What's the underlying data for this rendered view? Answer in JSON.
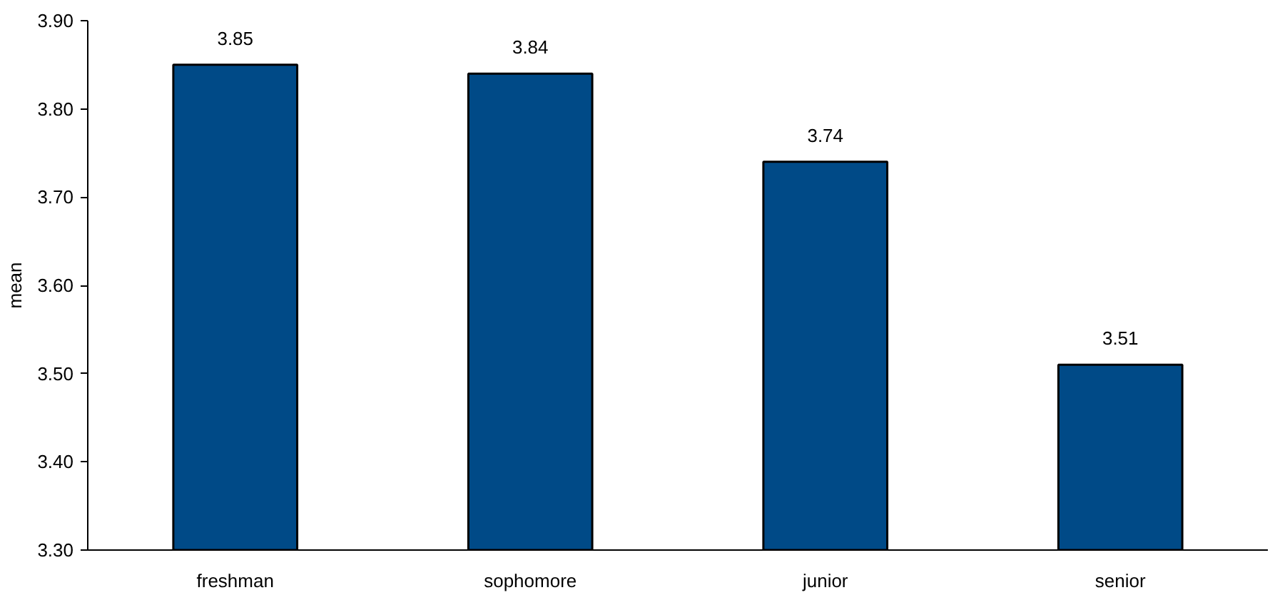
{
  "chart_data": {
    "type": "bar",
    "ylabel": "mean",
    "categories": [
      "freshman",
      "sophomore",
      "junior",
      "senior"
    ],
    "values": [
      3.85,
      3.84,
      3.74,
      3.51
    ],
    "color": "#004a87",
    "data_labels": true,
    "ylim": [
      3.3,
      3.9
    ],
    "yticks": [
      {
        "value": 3.3,
        "label": "3.30"
      },
      {
        "value": 3.4,
        "label": "3.40"
      },
      {
        "value": 3.5,
        "label": "3.50"
      },
      {
        "value": 3.6,
        "label": "3.60"
      },
      {
        "value": 3.7,
        "label": "3.70"
      },
      {
        "value": 3.8,
        "label": "3.80"
      },
      {
        "value": 3.9,
        "label": "3.90"
      }
    ],
    "grid": false
  }
}
